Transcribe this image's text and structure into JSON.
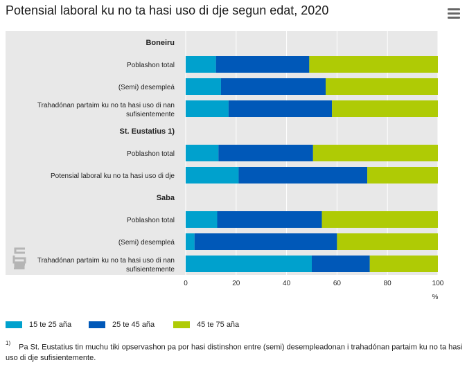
{
  "header": {
    "title": "Potensial laboral ku no ta hasi uso di dje segun edat, 2020",
    "menu_icon": "hamburger-menu-icon"
  },
  "colors": {
    "series": [
      "#00a1cd",
      "#0058b8",
      "#afcb05"
    ],
    "panel_bg": "#e8e8e8",
    "grid": "#ffffff"
  },
  "chart_data": {
    "type": "bar",
    "orientation": "horizontal",
    "stacked": true,
    "title": "Potensial laboral ku no ta hasi uso di dje segun edat, 2020",
    "xlabel": "%",
    "xlim": [
      0,
      100
    ],
    "xticks": [
      0,
      20,
      40,
      60,
      80,
      100
    ],
    "grid": true,
    "legend_position": "bottom-left",
    "rows": [
      {
        "kind": "group",
        "label": "Boneiru"
      },
      {
        "kind": "bar",
        "label": [
          "Poblashon total"
        ],
        "values": [
          12,
          37,
          51
        ]
      },
      {
        "kind": "bar",
        "label": [
          "(Semi) desempleá"
        ],
        "values": [
          14,
          41.5,
          44.5
        ]
      },
      {
        "kind": "bar",
        "label": [
          "Trahadónan partaim ku no ta hasi uso di nan",
          "sufisientemente"
        ],
        "values": [
          17,
          41,
          42
        ]
      },
      {
        "kind": "group",
        "label": "St. Eustatius 1)"
      },
      {
        "kind": "bar",
        "label": [
          "Poblashon total"
        ],
        "values": [
          13,
          37.5,
          49.5
        ]
      },
      {
        "kind": "bar",
        "label": [
          "Potensial laboral ku no ta hasi uso di dje"
        ],
        "values": [
          21,
          51,
          28
        ]
      },
      {
        "kind": "group",
        "label": "Saba"
      },
      {
        "kind": "bar",
        "label": [
          "Poblashon total"
        ],
        "values": [
          12.5,
          41.5,
          46
        ]
      },
      {
        "kind": "bar",
        "label": [
          "(Semi) desempleá"
        ],
        "values": [
          3.5,
          56.5,
          40
        ]
      },
      {
        "kind": "bar",
        "label": [
          "Trahadónan partaim ku no ta hasi uso di nan",
          "sufisientemente"
        ],
        "values": [
          50,
          23,
          27
        ]
      }
    ],
    "series": [
      {
        "name": "15 te 25 aña"
      },
      {
        "name": "25 te 45 aña"
      },
      {
        "name": "45 te 75 aña"
      }
    ]
  },
  "legend": {
    "items": [
      "15 te 25 aña",
      "25 te 45 aña",
      "45 te 75 aña"
    ]
  },
  "footnote": {
    "marker": "1)",
    "text": "Pa St. Eustatius tin muchu tiki opservashon pa por hasi distinshon entre (semi) desempleadonan i trahadónan partaim ku no ta hasi uso di dje sufisientemente."
  },
  "logo": {
    "name": "cbs-logo"
  }
}
